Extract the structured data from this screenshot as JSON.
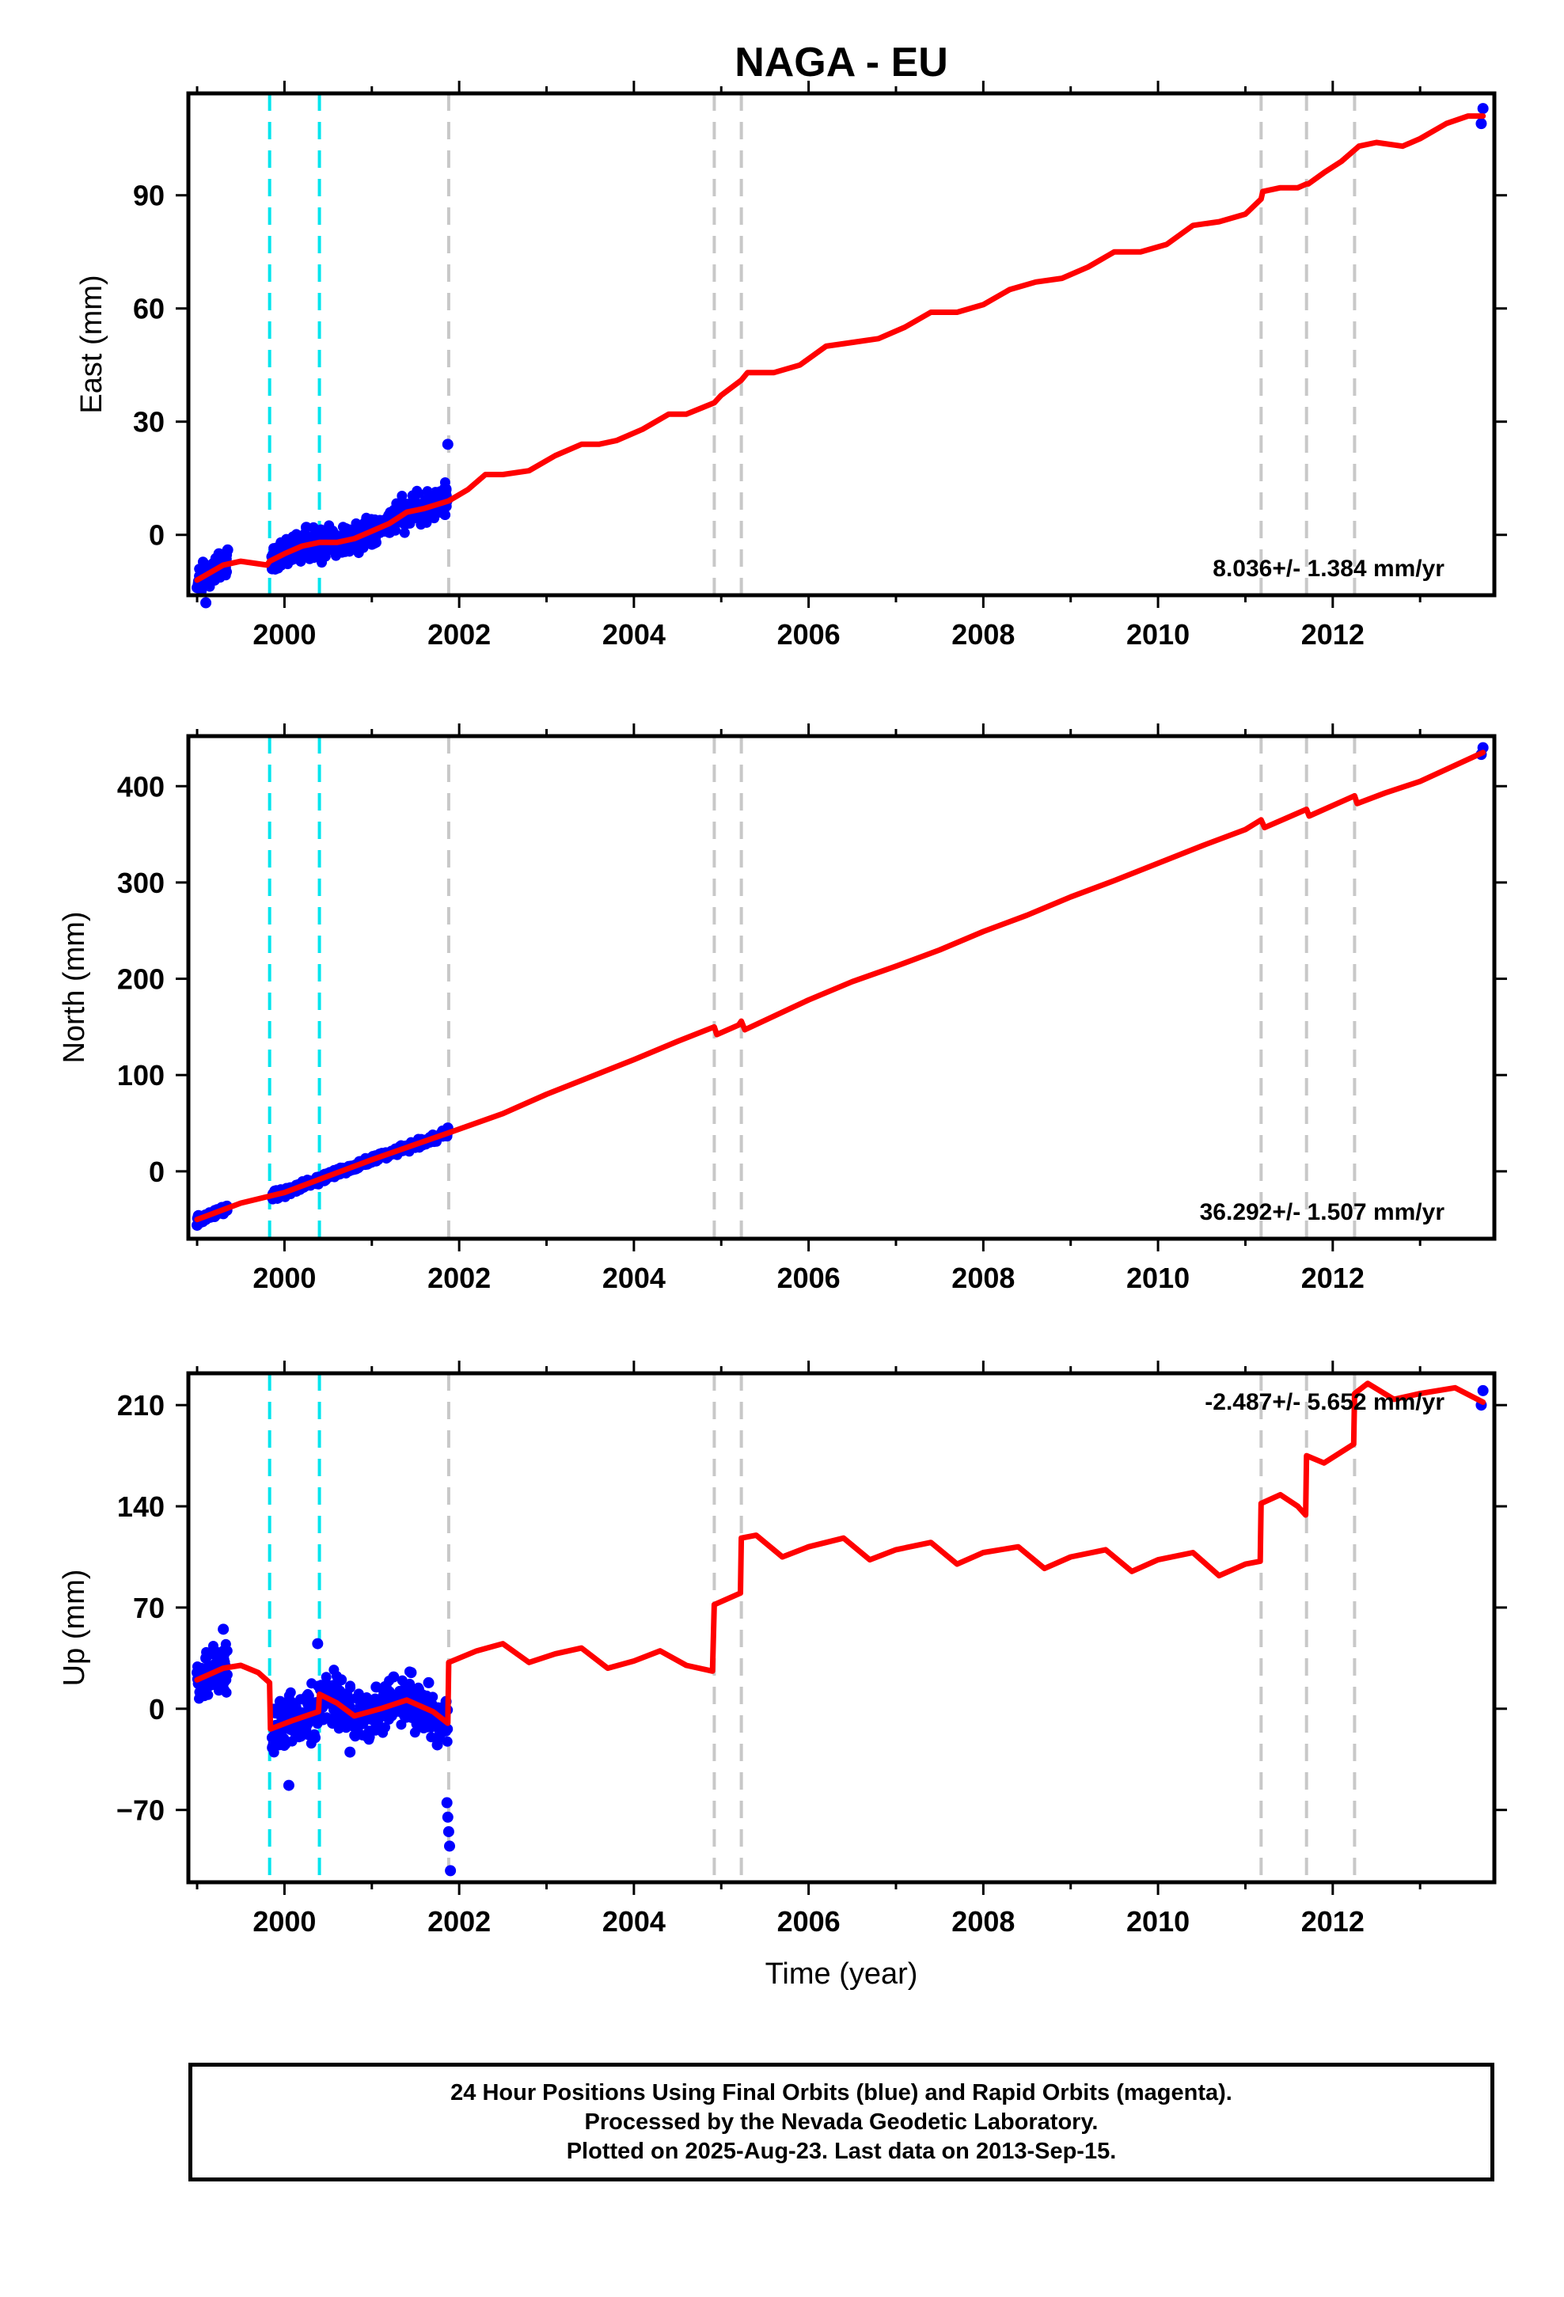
{
  "figure": {
    "title": "NAGA - EU",
    "xlabel": "Time (year)"
  },
  "colors": {
    "model_line": "#ff0000",
    "final_orbit_points": "#0000ff",
    "event_line_cyan": "#00e5ee",
    "event_line_gray": "#c8c8c8"
  },
  "chart_data": [
    {
      "type": "line",
      "name": "east",
      "ylabel": "East (mm)",
      "rate_text": "8.036+/- 1.384 mm/yr",
      "xlim": [
        1998.9,
        2013.85
      ],
      "ylim": [
        -16,
        117
      ],
      "xticks": [
        2000,
        2002,
        2004,
        2006,
        2008,
        2010,
        2012
      ],
      "yticks": [
        0,
        30,
        60,
        90
      ],
      "cyan_events": [
        1999.83,
        2000.4
      ],
      "gray_events": [
        2001.88,
        2004.92,
        2005.23,
        2011.18,
        2011.7,
        2012.25
      ],
      "series": [
        {
          "name": "model",
          "x": [
            1999.0,
            1999.3,
            1999.5,
            1999.8,
            1999.83,
            2000.0,
            2000.2,
            2000.4,
            2000.6,
            2000.8,
            2001.0,
            2001.2,
            2001.4,
            2001.6,
            2001.88,
            2002.1,
            2002.3,
            2002.5,
            2002.8,
            2003.1,
            2003.4,
            2003.6,
            2003.8,
            2004.1,
            2004.4,
            2004.6,
            2004.92,
            2005.0,
            2005.23,
            2005.3,
            2005.6,
            2005.9,
            2006.2,
            2006.5,
            2006.8,
            2007.1,
            2007.4,
            2007.7,
            2008.0,
            2008.3,
            2008.6,
            2008.9,
            2009.2,
            2009.5,
            2009.8,
            2010.1,
            2010.4,
            2010.7,
            2011.0,
            2011.18,
            2011.2,
            2011.4,
            2011.6,
            2011.7,
            2011.72,
            2011.9,
            2012.1,
            2012.25,
            2012.3,
            2012.5,
            2012.8,
            2013.0,
            2013.3,
            2013.55,
            2013.72
          ],
          "y": [
            -12,
            -8,
            -7,
            -8,
            -7,
            -5,
            -3,
            -2,
            -2,
            -1,
            1,
            3,
            6,
            7,
            9,
            12,
            16,
            16,
            17,
            21,
            24,
            24,
            25,
            28,
            32,
            32,
            35,
            37,
            41,
            43,
            43,
            45,
            50,
            51,
            52,
            55,
            59,
            59,
            61,
            65,
            67,
            68,
            71,
            75,
            75,
            77,
            82,
            83,
            85,
            89,
            91,
            92,
            92,
            93,
            93,
            96,
            99,
            102,
            103,
            104,
            103,
            105,
            109,
            111,
            111
          ]
        },
        {
          "name": "final_orbits",
          "x": [
            1999.0,
            1999.05,
            1999.1,
            1999.15,
            1999.2,
            1999.25,
            1999.3,
            1999.35,
            1999.86,
            1999.95,
            2000.05,
            2000.15,
            2000.25,
            2000.35,
            2000.45,
            2000.55,
            2000.65,
            2000.75,
            2000.85,
            2000.95,
            2001.05,
            2001.15,
            2001.25,
            2001.35,
            2001.45,
            2001.55,
            2001.65,
            2001.75,
            2001.85,
            2001.87,
            2013.7,
            2013.72
          ],
          "y": [
            -14,
            -10,
            -18,
            -9,
            -12,
            -5,
            -8,
            -4,
            -9,
            -6,
            -3,
            -4,
            2,
            -1,
            -3,
            1,
            -2,
            0,
            -3,
            2,
            3,
            1,
            6,
            4,
            8,
            5,
            9,
            7,
            12,
            24,
            109,
            113
          ]
        }
      ]
    },
    {
      "type": "line",
      "name": "north",
      "ylabel": "North (mm)",
      "rate_text": "36.292+/- 1.507 mm/yr",
      "xlim": [
        1998.9,
        2013.85
      ],
      "ylim": [
        -70,
        452
      ],
      "xticks": [
        2000,
        2002,
        2004,
        2006,
        2008,
        2010,
        2012
      ],
      "yticks": [
        0,
        100,
        200,
        300,
        400
      ],
      "cyan_events": [
        1999.83,
        2000.4
      ],
      "gray_events": [
        2001.88,
        2004.92,
        2005.23,
        2011.18,
        2011.7,
        2012.25
      ],
      "series": [
        {
          "name": "model",
          "x": [
            1999.0,
            1999.5,
            2000.0,
            2000.5,
            2001.0,
            2001.5,
            2001.88,
            2002.5,
            2003.0,
            2003.5,
            2004.0,
            2004.5,
            2004.92,
            2004.95,
            2005.2,
            2005.23,
            2005.27,
            2006.0,
            2006.5,
            2007.0,
            2007.5,
            2008.0,
            2008.5,
            2009.0,
            2009.5,
            2010.0,
            2010.5,
            2011.0,
            2011.18,
            2011.22,
            2011.7,
            2011.73,
            2012.25,
            2012.28,
            2012.6,
            2013.0,
            2013.72
          ],
          "y": [
            -50,
            -33,
            -22,
            -5,
            12,
            28,
            40,
            60,
            80,
            98,
            116,
            135,
            150,
            142,
            152,
            156,
            147,
            178,
            197,
            213,
            230,
            249,
            266,
            285,
            302,
            320,
            338,
            355,
            365,
            357,
            376,
            369,
            390,
            382,
            393,
            405,
            435
          ]
        },
        {
          "name": "final_orbits",
          "x": [
            1999.0,
            1999.1,
            1999.2,
            1999.3,
            1999.86,
            2000.0,
            2000.2,
            2000.4,
            2000.6,
            2000.8,
            2001.0,
            2001.2,
            2001.4,
            2001.6,
            2001.8,
            2001.87,
            2013.7,
            2013.72
          ],
          "y": [
            -56,
            -50,
            -47,
            -44,
            -27,
            -22,
            -14,
            -8,
            0,
            6,
            12,
            18,
            25,
            32,
            40,
            45,
            433,
            440
          ]
        }
      ]
    },
    {
      "type": "line",
      "name": "up",
      "ylabel": "Up (mm)",
      "rate_text": "-2.487+/- 5.652 mm/yr",
      "xlim": [
        1998.9,
        2013.85
      ],
      "ylim": [
        -120,
        232
      ],
      "xticks": [
        2000,
        2002,
        2004,
        2006,
        2008,
        2010,
        2012
      ],
      "yticks": [
        -70,
        0,
        70,
        140,
        210
      ],
      "cyan_events": [
        1999.83,
        2000.4
      ],
      "gray_events": [
        2001.88,
        2004.92,
        2005.23,
        2011.18,
        2011.7,
        2012.25
      ],
      "series": [
        {
          "name": "model",
          "x": [
            1999.0,
            1999.3,
            1999.5,
            1999.7,
            1999.83,
            1999.84,
            2000.1,
            2000.39,
            2000.4,
            2000.6,
            2000.8,
            2001.1,
            2001.4,
            2001.7,
            2001.87,
            2001.88,
            2002.2,
            2002.5,
            2002.8,
            2003.1,
            2003.4,
            2003.7,
            2004.0,
            2004.3,
            2004.6,
            2004.9,
            2004.92,
            2005.22,
            2005.23,
            2005.4,
            2005.7,
            2006.0,
            2006.4,
            2006.7,
            2007.0,
            2007.4,
            2007.7,
            2008.0,
            2008.4,
            2008.7,
            2009.0,
            2009.4,
            2009.7,
            2010.0,
            2010.4,
            2010.7,
            2011.0,
            2011.17,
            2011.18,
            2011.4,
            2011.6,
            2011.69,
            2011.7,
            2011.9,
            2012.24,
            2012.25,
            2012.4,
            2012.7,
            2013.0,
            2013.4,
            2013.72
          ],
          "y": [
            20,
            28,
            30,
            25,
            18,
            -14,
            -8,
            -2,
            10,
            4,
            -5,
            0,
            6,
            -2,
            -10,
            32,
            40,
            45,
            32,
            38,
            42,
            28,
            33,
            40,
            30,
            26,
            72,
            80,
            118,
            120,
            105,
            112,
            118,
            103,
            110,
            115,
            100,
            108,
            112,
            97,
            105,
            110,
            95,
            103,
            108,
            92,
            100,
            102,
            142,
            148,
            140,
            134,
            175,
            170,
            183,
            218,
            225,
            214,
            218,
            222,
            212
          ]
        },
        {
          "name": "final_orbits",
          "x": [
            1999.0,
            1999.05,
            1999.1,
            1999.15,
            1999.2,
            1999.25,
            1999.3,
            1999.86,
            1999.95,
            2000.0,
            2000.05,
            2000.15,
            2000.25,
            2000.35,
            2000.38,
            2000.45,
            2000.55,
            2000.65,
            2000.75,
            2000.85,
            2000.95,
            2001.05,
            2001.15,
            2001.25,
            2001.35,
            2001.45,
            2001.55,
            2001.65,
            2001.75,
            2001.85,
            2001.86,
            2001.87,
            2001.88,
            2001.89,
            2001.9,
            2013.7,
            2013.72
          ],
          "y": [
            25,
            10,
            35,
            18,
            40,
            28,
            55,
            -20,
            5,
            -5,
            -53,
            -15,
            8,
            -20,
            45,
            12,
            -10,
            20,
            -30,
            8,
            -18,
            15,
            -5,
            22,
            2,
            25,
            -8,
            18,
            -25,
            5,
            -65,
            -75,
            -85,
            -95,
            -112,
            210,
            220
          ]
        }
      ]
    }
  ],
  "footer": {
    "line1": "24 Hour Positions Using Final Orbits (blue) and Rapid Orbits (magenta).",
    "line2": "Processed by the Nevada Geodetic Laboratory.",
    "line3": "Plotted on 2025-Aug-23. Last data on 2013-Sep-15."
  }
}
